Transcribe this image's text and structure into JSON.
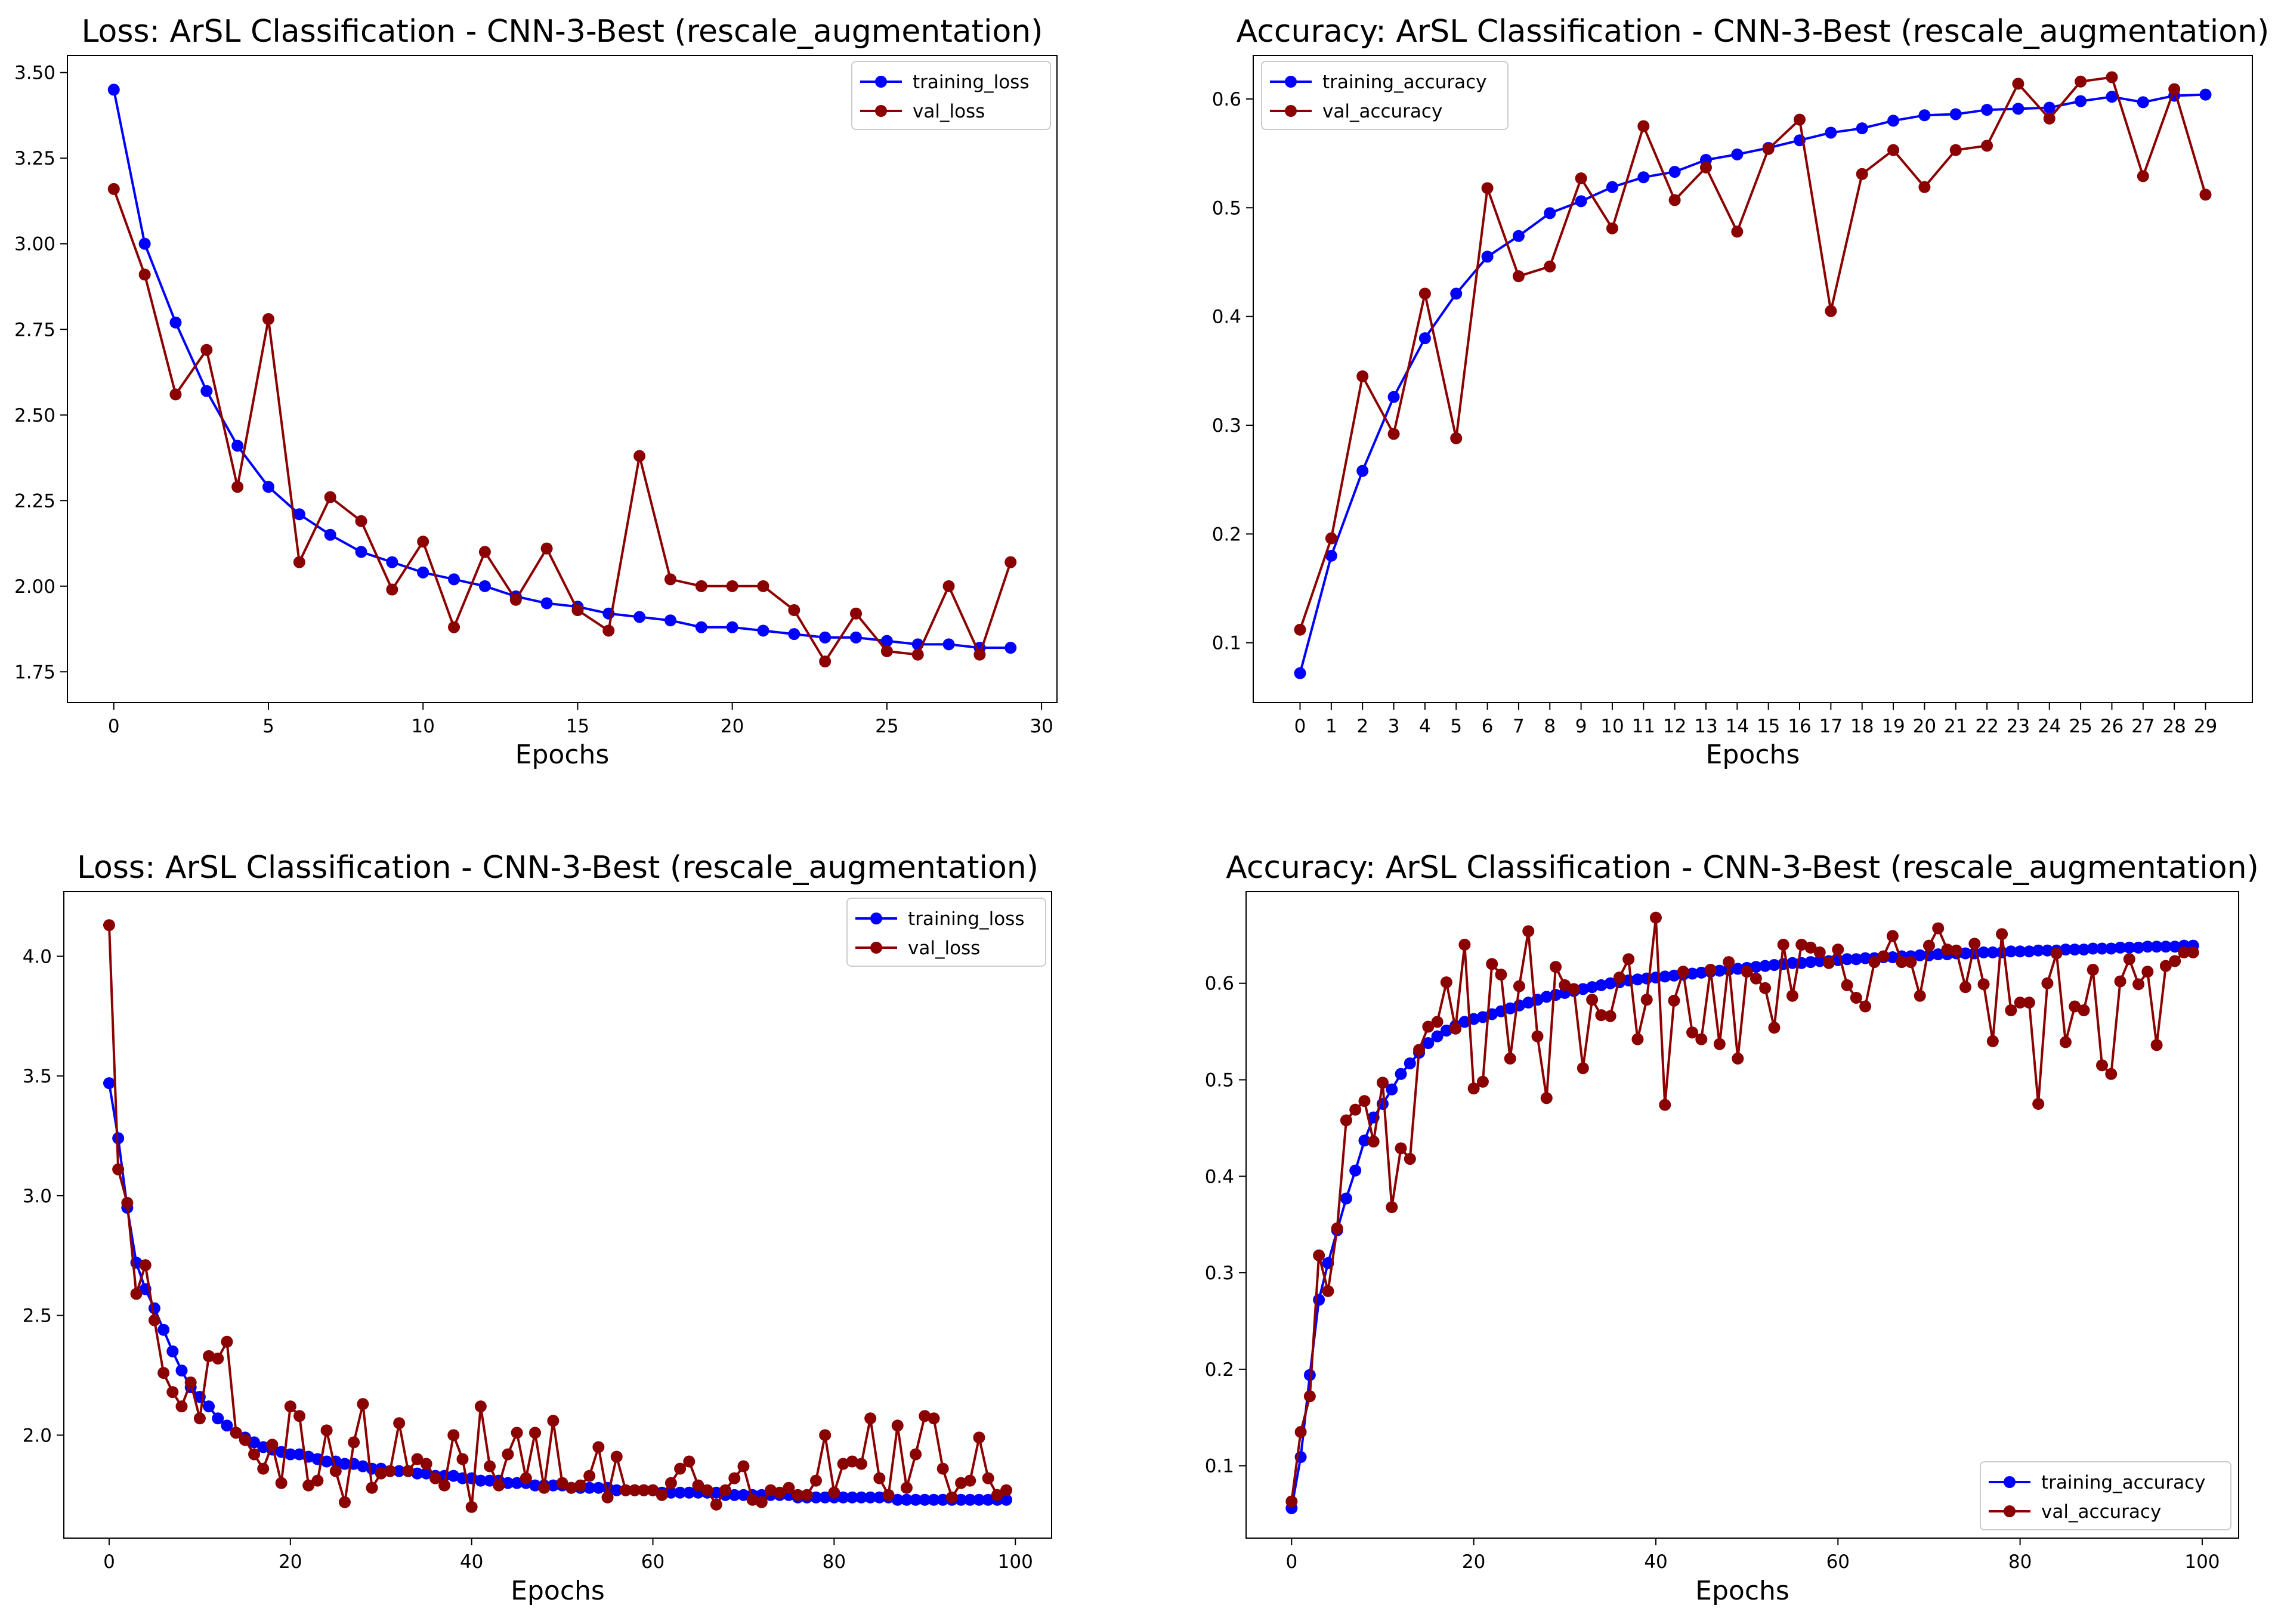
{
  "colors": {
    "training": "#0000ff",
    "validation": "#8b0000",
    "axes": "#000000",
    "legend_border": "#cccccc"
  },
  "chart_data": [
    {
      "type": "line",
      "title": "Loss: ArSL Classification - CNN-3-Best (rescale_augmentation)",
      "xlabel": "Epochs",
      "ylabel": "",
      "xlim": [
        -1.5,
        30.5
      ],
      "ylim": [
        1.66,
        3.55
      ],
      "xticks": [
        0,
        5,
        10,
        15,
        20,
        25,
        30
      ],
      "yticks": [
        1.75,
        2.0,
        2.25,
        2.5,
        2.75,
        3.0,
        3.25,
        3.5
      ],
      "ytick_labels": [
        "1.75",
        "2.00",
        "2.25",
        "2.50",
        "2.75",
        "3.00",
        "3.25",
        "3.50"
      ],
      "legend_position": "upper right",
      "series": [
        {
          "name": "training_loss",
          "color_key": "training",
          "values": [
            3.45,
            3.0,
            2.77,
            2.57,
            2.41,
            2.29,
            2.21,
            2.15,
            2.1,
            2.07,
            2.04,
            2.02,
            2.0,
            1.97,
            1.95,
            1.94,
            1.92,
            1.91,
            1.9,
            1.88,
            1.88,
            1.87,
            1.86,
            1.85,
            1.85,
            1.84,
            1.83,
            1.83,
            1.82,
            1.82
          ]
        },
        {
          "name": "val_loss",
          "color_key": "validation",
          "values": [
            3.16,
            2.91,
            2.56,
            2.69,
            2.29,
            2.78,
            2.07,
            2.26,
            2.19,
            1.99,
            2.13,
            1.88,
            2.1,
            1.96,
            2.11,
            1.93,
            1.87,
            2.38,
            2.02,
            2.0,
            2.0,
            2.0,
            1.93,
            1.78,
            1.92,
            1.81,
            1.8,
            2.0,
            1.8,
            2.07
          ]
        }
      ]
    },
    {
      "type": "line",
      "title": "Accuracy: ArSL Classification - CNN-3-Best (rescale_augmentation)",
      "xlabel": "Epochs",
      "ylabel": "",
      "xlim": [
        -1.5,
        30.5
      ],
      "ylim": [
        0.045,
        0.64
      ],
      "xticks": [
        0,
        1,
        2,
        3,
        4,
        5,
        6,
        7,
        8,
        9,
        10,
        11,
        12,
        13,
        14,
        15,
        16,
        17,
        18,
        19,
        20,
        21,
        22,
        23,
        24,
        25,
        26,
        27,
        28,
        29
      ],
      "yticks": [
        0.1,
        0.2,
        0.3,
        0.4,
        0.5,
        0.6
      ],
      "ytick_labels": [
        "0.1",
        "0.2",
        "0.3",
        "0.4",
        "0.5",
        "0.6"
      ],
      "legend_position": "upper left",
      "series": [
        {
          "name": "training_accuracy",
          "color_key": "training",
          "values": [
            0.072,
            0.18,
            0.258,
            0.326,
            0.38,
            0.421,
            0.455,
            0.474,
            0.495,
            0.506,
            0.519,
            0.528,
            0.533,
            0.544,
            0.549,
            0.555,
            0.562,
            0.569,
            0.573,
            0.58,
            0.585,
            0.586,
            0.59,
            0.591,
            0.592,
            0.598,
            0.602,
            0.597,
            0.603,
            0.604
          ]
        },
        {
          "name": "val_accuracy",
          "color_key": "validation",
          "values": [
            0.112,
            0.196,
            0.345,
            0.292,
            0.421,
            0.288,
            0.518,
            0.437,
            0.446,
            0.527,
            0.481,
            0.575,
            0.507,
            0.537,
            0.478,
            0.554,
            0.581,
            0.405,
            0.531,
            0.553,
            0.519,
            0.553,
            0.557,
            0.614,
            0.582,
            0.616,
            0.62,
            0.529,
            0.609,
            0.512
          ]
        }
      ]
    },
    {
      "type": "line",
      "title": "Loss: ArSL Classification - CNN-3-Best (rescale_augmentation)",
      "xlabel": "Epochs",
      "ylabel": "",
      "xlim": [
        -5,
        104
      ],
      "ylim": [
        1.57,
        4.27
      ],
      "xticks": [
        0,
        20,
        40,
        60,
        80,
        100
      ],
      "yticks": [
        2.0,
        2.5,
        3.0,
        3.5,
        4.0
      ],
      "ytick_labels": [
        "2.0",
        "2.5",
        "3.0",
        "3.5",
        "4.0"
      ],
      "legend_position": "upper right",
      "series": [
        {
          "name": "training_loss",
          "color_key": "training",
          "values": [
            3.47,
            3.24,
            2.95,
            2.72,
            2.61,
            2.53,
            2.44,
            2.35,
            2.27,
            2.2,
            2.16,
            2.12,
            2.07,
            2.04,
            2.01,
            1.99,
            1.97,
            1.95,
            1.94,
            1.93,
            1.92,
            1.92,
            1.91,
            1.9,
            1.89,
            1.89,
            1.88,
            1.88,
            1.87,
            1.86,
            1.86,
            1.85,
            1.85,
            1.85,
            1.84,
            1.84,
            1.83,
            1.83,
            1.83,
            1.82,
            1.82,
            1.81,
            1.81,
            1.81,
            1.8,
            1.8,
            1.8,
            1.79,
            1.79,
            1.79,
            1.79,
            1.78,
            1.78,
            1.78,
            1.78,
            1.78,
            1.77,
            1.77,
            1.77,
            1.77,
            1.77,
            1.76,
            1.76,
            1.76,
            1.76,
            1.76,
            1.76,
            1.76,
            1.75,
            1.75,
            1.75,
            1.75,
            1.75,
            1.75,
            1.75,
            1.75,
            1.74,
            1.74,
            1.74,
            1.74,
            1.74,
            1.74,
            1.74,
            1.74,
            1.74,
            1.74,
            1.74,
            1.73,
            1.73,
            1.73,
            1.73,
            1.73,
            1.73,
            1.73,
            1.73,
            1.73,
            1.73,
            1.73,
            1.73,
            1.73
          ]
        },
        {
          "name": "val_loss",
          "color_key": "validation",
          "values": [
            4.13,
            3.11,
            2.97,
            2.59,
            2.71,
            2.48,
            2.26,
            2.18,
            2.12,
            2.22,
            2.07,
            2.33,
            2.32,
            2.39,
            2.01,
            1.98,
            1.92,
            1.86,
            1.96,
            1.8,
            2.12,
            2.08,
            1.79,
            1.81,
            2.02,
            1.85,
            1.72,
            1.97,
            2.13,
            1.78,
            1.84,
            1.85,
            2.05,
            1.85,
            1.9,
            1.88,
            1.82,
            1.79,
            2.0,
            1.9,
            1.7,
            2.12,
            1.87,
            1.79,
            1.92,
            2.01,
            1.82,
            2.01,
            1.78,
            2.06,
            1.8,
            1.78,
            1.79,
            1.83,
            1.95,
            1.74,
            1.91,
            1.77,
            1.77,
            1.77,
            1.77,
            1.75,
            1.8,
            1.86,
            1.89,
            1.79,
            1.77,
            1.71,
            1.77,
            1.82,
            1.87,
            1.73,
            1.72,
            1.77,
            1.76,
            1.78,
            1.75,
            1.75,
            1.81,
            2.0,
            1.76,
            1.88,
            1.89,
            1.88,
            2.07,
            1.82,
            1.75,
            2.04,
            1.78,
            1.92,
            2.08,
            2.07,
            1.86,
            1.74,
            1.8,
            1.81,
            1.99,
            1.82,
            1.75,
            1.77
          ]
        }
      ]
    },
    {
      "type": "line",
      "title": "Accuracy: ArSL Classification - CNN-3-Best (rescale_augmentation)",
      "xlabel": "Epochs",
      "ylabel": "",
      "xlim": [
        -5,
        104
      ],
      "ylim": [
        0.025,
        0.695
      ],
      "xticks": [
        0,
        20,
        40,
        60,
        80,
        100
      ],
      "yticks": [
        0.1,
        0.2,
        0.3,
        0.4,
        0.5,
        0.6
      ],
      "ytick_labels": [
        "0.1",
        "0.2",
        "0.3",
        "0.4",
        "0.5",
        "0.6"
      ],
      "legend_position": "lower right",
      "series": [
        {
          "name": "training_accuracy",
          "color_key": "training",
          "values": [
            0.056,
            0.109,
            0.194,
            0.272,
            0.31,
            0.344,
            0.377,
            0.406,
            0.437,
            0.461,
            0.475,
            0.49,
            0.506,
            0.517,
            0.528,
            0.538,
            0.545,
            0.551,
            0.556,
            0.56,
            0.563,
            0.565,
            0.568,
            0.571,
            0.574,
            0.577,
            0.58,
            0.583,
            0.586,
            0.588,
            0.59,
            0.592,
            0.594,
            0.596,
            0.598,
            0.6,
            0.601,
            0.603,
            0.604,
            0.605,
            0.606,
            0.607,
            0.608,
            0.609,
            0.61,
            0.611,
            0.612,
            0.613,
            0.614,
            0.615,
            0.616,
            0.617,
            0.618,
            0.619,
            0.62,
            0.621,
            0.621,
            0.622,
            0.623,
            0.623,
            0.624,
            0.625,
            0.625,
            0.626,
            0.626,
            0.627,
            0.627,
            0.628,
            0.628,
            0.629,
            0.629,
            0.63,
            0.63,
            0.631,
            0.631,
            0.631,
            0.632,
            0.632,
            0.632,
            0.633,
            0.633,
            0.633,
            0.634,
            0.634,
            0.634,
            0.635,
            0.635,
            0.635,
            0.636,
            0.636,
            0.636,
            0.637,
            0.637,
            0.637,
            0.638,
            0.638,
            0.638,
            0.638,
            0.639,
            0.639
          ]
        },
        {
          "name": "val_accuracy",
          "color_key": "validation",
          "values": [
            0.063,
            0.135,
            0.172,
            0.318,
            0.281,
            0.346,
            0.458,
            0.469,
            0.478,
            0.436,
            0.497,
            0.368,
            0.429,
            0.418,
            0.531,
            0.555,
            0.56,
            0.601,
            0.553,
            0.64,
            0.491,
            0.498,
            0.62,
            0.609,
            0.522,
            0.597,
            0.654,
            0.545,
            0.481,
            0.617,
            0.598,
            0.594,
            0.512,
            0.583,
            0.567,
            0.566,
            0.606,
            0.625,
            0.542,
            0.583,
            0.668,
            0.474,
            0.582,
            0.612,
            0.549,
            0.542,
            0.614,
            0.537,
            0.622,
            0.522,
            0.612,
            0.605,
            0.595,
            0.554,
            0.64,
            0.587,
            0.64,
            0.637,
            0.632,
            0.621,
            0.635,
            0.598,
            0.585,
            0.576,
            0.622,
            0.628,
            0.649,
            0.622,
            0.622,
            0.587,
            0.639,
            0.657,
            0.635,
            0.634,
            0.596,
            0.641,
            0.599,
            0.54,
            0.651,
            0.572,
            0.58,
            0.58,
            0.475,
            0.6,
            0.631,
            0.539,
            0.576,
            0.572,
            0.614,
            0.515,
            0.506,
            0.602,
            0.625,
            0.599,
            0.612,
            0.536,
            0.618,
            0.623,
            0.632,
            0.632
          ]
        }
      ]
    }
  ]
}
